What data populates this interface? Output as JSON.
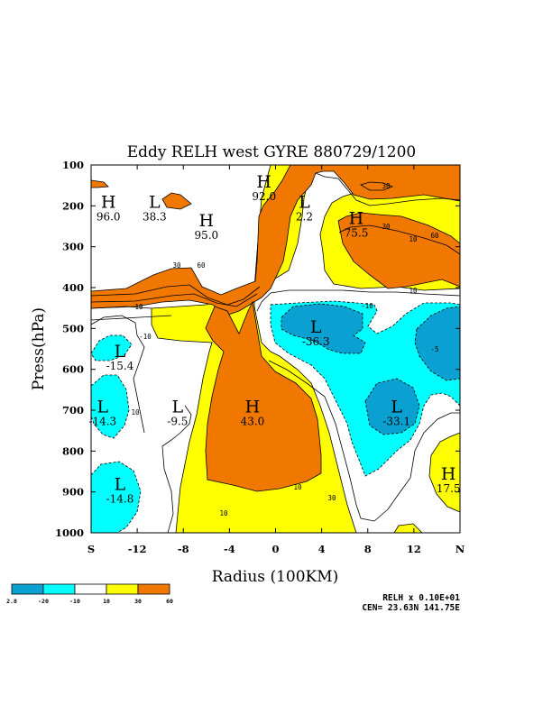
{
  "chart_data": {
    "type": "contour",
    "title": "Eddy RELH west GYRE 880729/1200",
    "xlabel": "Radius (100KM)",
    "ylabel": "Press(hPa)",
    "x_ticks": [
      "S",
      "-12",
      "-8",
      "-4",
      "0",
      "4",
      "8",
      "12",
      "N"
    ],
    "y_ticks": [
      "100",
      "200",
      "300",
      "400",
      "500",
      "600",
      "700",
      "800",
      "900",
      "1000"
    ],
    "xlim": [
      -16,
      16
    ],
    "ylim": [
      1000,
      100
    ],
    "colors": {
      "below_minus20": "#0aa0d2",
      "minus20_to_minus10": "#00ffff",
      "minus10_to_10": "#ffffff",
      "10_to_30": "#ffff00",
      "30_to_60": "#f07800"
    },
    "colorbar_labels": [
      "2.8",
      "-20",
      "-10",
      "10",
      "30",
      "60"
    ],
    "contour_labels": [
      "10",
      "30",
      "60",
      "-10",
      "-5",
      "10",
      "30",
      "60",
      "10",
      "30",
      "-10",
      "30",
      "10",
      "10",
      "10"
    ],
    "extrema": [
      {
        "kind": "H",
        "value": "96.0",
        "x": -14.5,
        "p": 205
      },
      {
        "kind": "L",
        "value": "38.3",
        "x": -10.5,
        "p": 205
      },
      {
        "kind": "H",
        "value": "95.0",
        "x": -6.0,
        "p": 250
      },
      {
        "kind": "H",
        "value": "92.0",
        "x": -1.0,
        "p": 155
      },
      {
        "kind": "L",
        "value": "2.2",
        "x": 2.5,
        "p": 205
      },
      {
        "kind": "H",
        "value": "75.5",
        "x": 7.0,
        "p": 245
      },
      {
        "kind": "L",
        "value": "-36.3",
        "x": 3.5,
        "p": 510
      },
      {
        "kind": "L",
        "value": "-15.4",
        "x": -13.5,
        "p": 570
      },
      {
        "kind": "L",
        "value": "-14.3",
        "x": -15.0,
        "p": 705
      },
      {
        "kind": "L",
        "value": "-9.5",
        "x": -8.5,
        "p": 705
      },
      {
        "kind": "H",
        "value": "43.0",
        "x": -2.0,
        "p": 705
      },
      {
        "kind": "L",
        "value": "-33.1",
        "x": 10.5,
        "p": 705
      },
      {
        "kind": "H",
        "value": "17.5",
        "x": 15.0,
        "p": 870
      },
      {
        "kind": "L",
        "value": "-14.8",
        "x": -13.5,
        "p": 895
      }
    ],
    "grid": false
  },
  "footer": {
    "field_label": "RELH x  0.10E+01",
    "center_label": "CEN= 23.63N  141.75E"
  }
}
